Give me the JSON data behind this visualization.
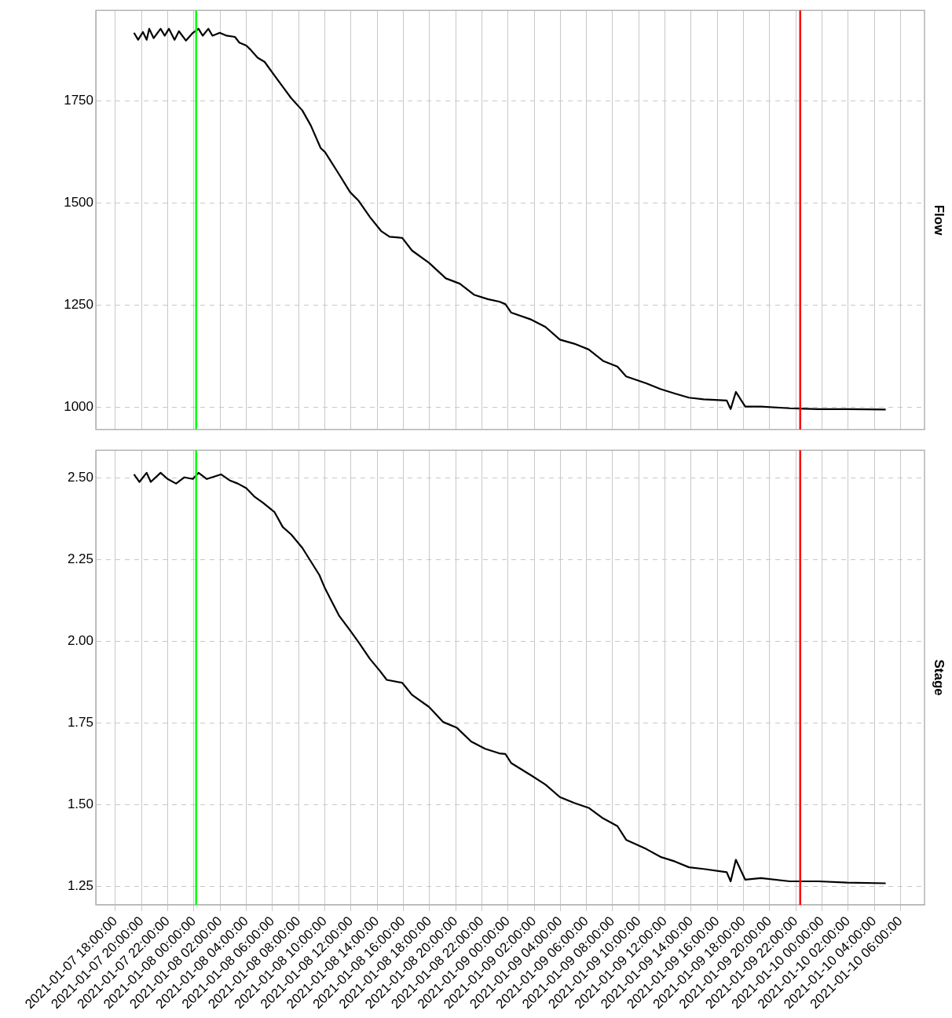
{
  "chart_data": [
    {
      "type": "line",
      "ylabel": "Flow",
      "tick_labels": "y",
      "grid": true,
      "xlim": [
        "2021-01-07T16:30",
        "2021-01-10T07:50"
      ],
      "xticks": [
        {
          "value": "2021-01-07T18:00",
          "label": null
        },
        {
          "value": "2021-01-07T20:00",
          "label": null
        },
        {
          "value": "2021-01-07T22:00",
          "label": null
        },
        {
          "value": "2021-01-08T00:00",
          "label": null
        },
        {
          "value": "2021-01-08T02:00",
          "label": null
        },
        {
          "value": "2021-01-08T04:00",
          "label": null
        },
        {
          "value": "2021-01-08T06:00",
          "label": null
        },
        {
          "value": "2021-01-08T08:00",
          "label": null
        },
        {
          "value": "2021-01-08T10:00",
          "label": null
        },
        {
          "value": "2021-01-08T12:00",
          "label": null
        },
        {
          "value": "2021-01-08T14:00",
          "label": null
        },
        {
          "value": "2021-01-08T16:00",
          "label": null
        },
        {
          "value": "2021-01-08T18:00",
          "label": null
        },
        {
          "value": "2021-01-08T20:00",
          "label": null
        },
        {
          "value": "2021-01-08T22:00",
          "label": null
        },
        {
          "value": "2021-01-09T00:00",
          "label": null
        },
        {
          "value": "2021-01-09T02:00",
          "label": null
        },
        {
          "value": "2021-01-09T04:00",
          "label": null
        },
        {
          "value": "2021-01-09T06:00",
          "label": null
        },
        {
          "value": "2021-01-09T08:00",
          "label": null
        },
        {
          "value": "2021-01-09T10:00",
          "label": null
        },
        {
          "value": "2021-01-09T12:00",
          "label": null
        },
        {
          "value": "2021-01-09T14:00",
          "label": null
        },
        {
          "value": "2021-01-09T16:00",
          "label": null
        },
        {
          "value": "2021-01-09T18:00",
          "label": null
        },
        {
          "value": "2021-01-09T20:00",
          "label": null
        },
        {
          "value": "2021-01-09T22:00",
          "label": null
        },
        {
          "value": "2021-01-10T00:00",
          "label": null
        },
        {
          "value": "2021-01-10T02:00",
          "label": null
        },
        {
          "value": "2021-01-10T04:00",
          "label": null
        },
        {
          "value": "2021-01-10T06:00",
          "label": null
        }
      ],
      "ylim": [
        946,
        1972
      ],
      "yticks": [
        1000,
        1250,
        1500,
        1750
      ],
      "ref_lines": [
        {
          "axis": "x",
          "value": "2021-01-08T00:10",
          "color": "#00ff00"
        },
        {
          "axis": "x",
          "value": "2021-01-09T22:20",
          "color": "#ff0000"
        }
      ],
      "series": [
        {
          "color": "#000000",
          "x": [
            "2021-01-07T19:25",
            "2021-01-07T19:44",
            "2021-01-07T20:06",
            "2021-01-07T20:23",
            "2021-01-07T20:35",
            "2021-01-07T20:55",
            "2021-01-07T21:27",
            "2021-01-07T21:46",
            "2021-01-07T22:05",
            "2021-01-07T22:31",
            "2021-01-07T22:51",
            "2021-01-07T23:23",
            "2021-01-07T23:55",
            "2021-01-08T00:21",
            "2021-01-08T00:40",
            "2021-01-08T01:06",
            "2021-01-08T01:25",
            "2021-01-08T01:58",
            "2021-01-08T02:30",
            "2021-01-08T03:08",
            "2021-01-08T03:28",
            "2021-01-08T04:00",
            "2021-01-08T04:19",
            "2021-01-08T04:52",
            "2021-01-08T05:24",
            "2021-01-08T06:02",
            "2021-01-08T06:47",
            "2021-01-08T07:26",
            "2021-01-08T08:17",
            "2021-01-08T08:56",
            "2021-01-08T09:41",
            "2021-01-08T10:01",
            "2021-01-08T11:05",
            "2021-01-08T11:56",
            "2021-01-08T12:35",
            "2021-01-08T13:27",
            "2021-01-08T14:18",
            "2021-01-08T14:57",
            "2021-01-08T15:55",
            "2021-01-08T16:40",
            "2021-01-08T17:58",
            "2021-01-08T19:15",
            "2021-01-08T20:19",
            "2021-01-08T21:24",
            "2021-01-08T22:28",
            "2021-01-08T23:20",
            "2021-01-08T23:48",
            "2021-01-09T00:15",
            "2021-01-09T01:47",
            "2021-01-09T02:52",
            "2021-01-09T03:58",
            "2021-01-09T05:04",
            "2021-01-09T06:10",
            "2021-01-09T07:16",
            "2021-01-09T08:22",
            "2021-01-09T09:02",
            "2021-01-09T10:34",
            "2021-01-09T11:39",
            "2021-01-09T12:45",
            "2021-01-09T13:50",
            "2021-01-09T14:57",
            "2021-01-09T16:43",
            "2021-01-09T17:01",
            "2021-01-09T17:25",
            "2021-01-09T18:08",
            "2021-01-09T19:20",
            "2021-01-09T21:32",
            "2021-01-09T23:44",
            "2021-01-10T01:55",
            "2021-01-10T04:52"
          ],
          "values": [
            1917,
            1900,
            1919,
            1900,
            1927,
            1904,
            1927,
            1910,
            1927,
            1900,
            1921,
            1898,
            1917,
            1927,
            1910,
            1927,
            1910,
            1917,
            1910,
            1907,
            1893,
            1886,
            1876,
            1856,
            1846,
            1818,
            1785,
            1757,
            1727,
            1690,
            1635,
            1625,
            1571,
            1527,
            1506,
            1466,
            1432,
            1418,
            1415,
            1384,
            1354,
            1316,
            1303,
            1276,
            1265,
            1259,
            1253,
            1232,
            1215,
            1197,
            1166,
            1156,
            1142,
            1114,
            1100,
            1076,
            1059,
            1045,
            1034,
            1024,
            1020,
            1017,
            996,
            1038,
            1002,
            1002,
            998,
            996,
            996,
            995
          ]
        }
      ]
    },
    {
      "type": "line",
      "ylabel": "Stage",
      "grid": true,
      "xlim": [
        "2021-01-07T16:30",
        "2021-01-10T07:50"
      ],
      "xticks": [
        {
          "value": "2021-01-07T18:00",
          "label": "2021-01-07 18:00:00"
        },
        {
          "value": "2021-01-07T20:00",
          "label": "2021-01-07 20:00:00"
        },
        {
          "value": "2021-01-07T22:00",
          "label": "2021-01-07 22:00:00"
        },
        {
          "value": "2021-01-08T00:00",
          "label": "2021-01-08 00:00:00"
        },
        {
          "value": "2021-01-08T02:00",
          "label": "2021-01-08 02:00:00"
        },
        {
          "value": "2021-01-08T04:00",
          "label": "2021-01-08 04:00:00"
        },
        {
          "value": "2021-01-08T06:00",
          "label": "2021-01-08 06:00:00"
        },
        {
          "value": "2021-01-08T08:00",
          "label": "2021-01-08 08:00:00"
        },
        {
          "value": "2021-01-08T10:00",
          "label": "2021-01-08 10:00:00"
        },
        {
          "value": "2021-01-08T12:00",
          "label": "2021-01-08 12:00:00"
        },
        {
          "value": "2021-01-08T14:00",
          "label": "2021-01-08 14:00:00"
        },
        {
          "value": "2021-01-08T16:00",
          "label": "2021-01-08 16:00:00"
        },
        {
          "value": "2021-01-08T18:00",
          "label": "2021-01-08 18:00:00"
        },
        {
          "value": "2021-01-08T20:00",
          "label": "2021-01-08 20:00:00"
        },
        {
          "value": "2021-01-08T22:00",
          "label": "2021-01-08 22:00:00"
        },
        {
          "value": "2021-01-09T00:00",
          "label": "2021-01-09 00:00:00"
        },
        {
          "value": "2021-01-09T02:00",
          "label": "2021-01-09 02:00:00"
        },
        {
          "value": "2021-01-09T04:00",
          "label": "2021-01-09 04:00:00"
        },
        {
          "value": "2021-01-09T06:00",
          "label": "2021-01-09 06:00:00"
        },
        {
          "value": "2021-01-09T08:00",
          "label": "2021-01-09 08:00:00"
        },
        {
          "value": "2021-01-09T10:00",
          "label": "2021-01-09 10:00:00"
        },
        {
          "value": "2021-01-09T12:00",
          "label": "2021-01-09 12:00:00"
        },
        {
          "value": "2021-01-09T14:00",
          "label": "2021-01-09 14:00:00"
        },
        {
          "value": "2021-01-09T16:00",
          "label": "2021-01-09 16:00:00"
        },
        {
          "value": "2021-01-09T18:00",
          "label": "2021-01-09 18:00:00"
        },
        {
          "value": "2021-01-09T20:00",
          "label": "2021-01-09 20:00:00"
        },
        {
          "value": "2021-01-09T22:00",
          "label": "2021-01-09 22:00:00"
        },
        {
          "value": "2021-01-10T00:00",
          "label": "2021-01-10 00:00:00"
        },
        {
          "value": "2021-01-10T02:00",
          "label": "2021-01-10 02:00:00"
        },
        {
          "value": "2021-01-10T04:00",
          "label": "2021-01-10 04:00:00"
        },
        {
          "value": "2021-01-10T06:00",
          "label": "2021-01-10 06:00:00"
        }
      ],
      "ylim": [
        1.193,
        2.585
      ],
      "yticks": [
        1.25,
        {
          "value": 1.5,
          "label": "1.50"
        },
        1.75,
        {
          "value": 2,
          "label": "2.00"
        },
        2.25,
        {
          "value": 2.5,
          "label": "2.50"
        }
      ],
      "ref_lines": [
        {
          "axis": "x",
          "value": "2021-01-08T00:10",
          "color": "#00ff00"
        },
        {
          "axis": "x",
          "value": "2021-01-09T22:20",
          "color": "#ff0000"
        }
      ],
      "series": [
        {
          "color": "#000000",
          "x": [
            "2021-01-07T19:25",
            "2021-01-07T19:50",
            "2021-01-07T20:23",
            "2021-01-07T20:42",
            "2021-01-07T21:27",
            "2021-01-07T21:59",
            "2021-01-07T22:38",
            "2021-01-07T23:16",
            "2021-01-07T23:55",
            "2021-01-08T00:21",
            "2021-01-08T00:59",
            "2021-01-08T02:04",
            "2021-01-08T02:43",
            "2021-01-08T03:21",
            "2021-01-08T04:00",
            "2021-01-08T04:39",
            "2021-01-08T05:17",
            "2021-01-08T06:09",
            "2021-01-08T06:47",
            "2021-01-08T07:26",
            "2021-01-08T08:17",
            "2021-01-08T09:35",
            "2021-01-08T10:01",
            "2021-01-08T11:05",
            "2021-01-08T11:56",
            "2021-01-08T12:35",
            "2021-01-08T13:27",
            "2021-01-08T14:12",
            "2021-01-08T14:44",
            "2021-01-08T15:55",
            "2021-01-08T16:40",
            "2021-01-08T17:58",
            "2021-01-08T19:02",
            "2021-01-08T20:06",
            "2021-01-08T21:11",
            "2021-01-08T22:15",
            "2021-01-08T23:20",
            "2021-01-08T23:48",
            "2021-01-09T00:15",
            "2021-01-09T01:47",
            "2021-01-09T02:52",
            "2021-01-09T03:58",
            "2021-01-09T05:04",
            "2021-01-09T06:10",
            "2021-01-09T07:16",
            "2021-01-09T08:22",
            "2021-01-09T09:02",
            "2021-01-09T10:34",
            "2021-01-09T11:39",
            "2021-01-09T12:45",
            "2021-01-09T13:50",
            "2021-01-09T14:57",
            "2021-01-09T16:43",
            "2021-01-09T17:01",
            "2021-01-09T17:25",
            "2021-01-09T18:08",
            "2021-01-09T19:20",
            "2021-01-09T21:32",
            "2021-01-09T23:44",
            "2021-01-10T01:55",
            "2021-01-10T04:52"
          ],
          "values": [
            2.511,
            2.488,
            2.516,
            2.488,
            2.516,
            2.497,
            2.483,
            2.502,
            2.497,
            2.516,
            2.497,
            2.511,
            2.493,
            2.483,
            2.469,
            2.442,
            2.424,
            2.396,
            2.35,
            2.327,
            2.286,
            2.203,
            2.162,
            2.079,
            2.033,
            1.997,
            1.946,
            1.91,
            1.882,
            1.873,
            1.836,
            1.799,
            1.753,
            1.735,
            1.693,
            1.671,
            1.657,
            1.655,
            1.627,
            1.589,
            1.561,
            1.523,
            1.505,
            1.49,
            1.458,
            1.434,
            1.392,
            1.364,
            1.34,
            1.326,
            1.308,
            1.303,
            1.293,
            1.265,
            1.331,
            1.27,
            1.275,
            1.265,
            1.265,
            1.261,
            1.259
          ]
        }
      ]
    }
  ]
}
